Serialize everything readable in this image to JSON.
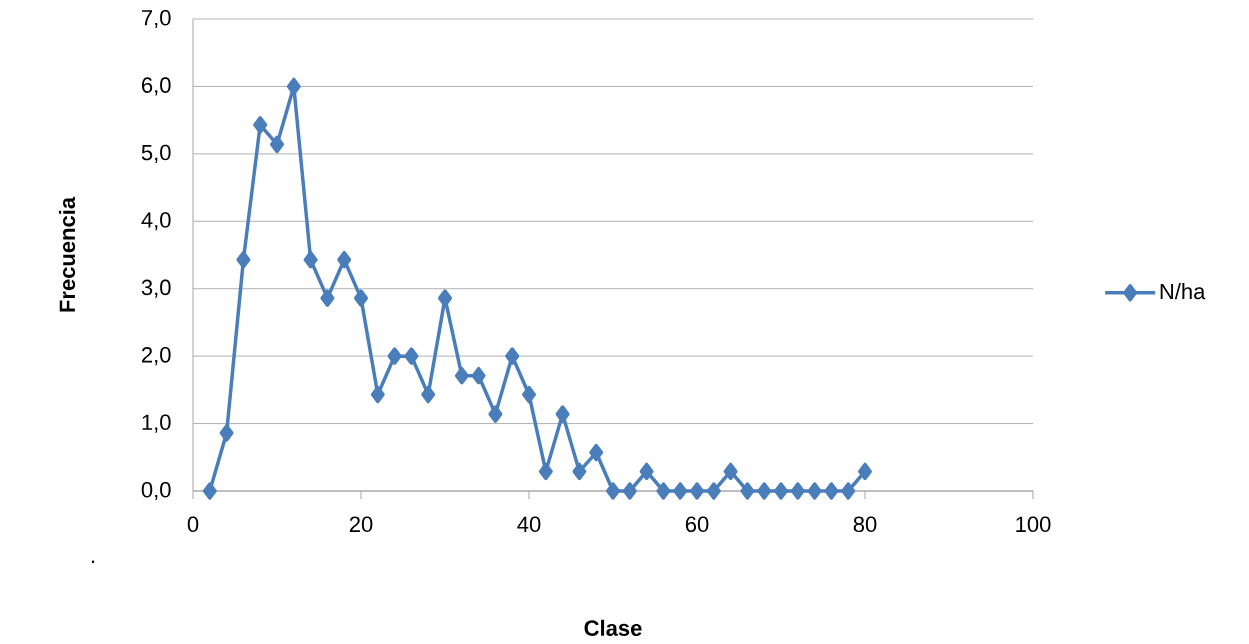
{
  "chart_data": {
    "type": "line",
    "xlabel": "Clase",
    "ylabel": "Frecuencia",
    "x": [
      2,
      4,
      6,
      8,
      10,
      12,
      14,
      16,
      18,
      20,
      22,
      24,
      26,
      28,
      30,
      32,
      34,
      36,
      38,
      40,
      42,
      44,
      46,
      48,
      50,
      52,
      54,
      56,
      58,
      60,
      62,
      64,
      66,
      68,
      70,
      72,
      74,
      76,
      78,
      80
    ],
    "series": [
      {
        "name": "N/ha",
        "color": "#4a7ebb",
        "values": [
          0,
          0.86,
          3.43,
          5.43,
          5.14,
          6.0,
          3.43,
          2.86,
          3.43,
          2.86,
          1.43,
          2.0,
          2.0,
          1.43,
          2.86,
          1.71,
          1.71,
          1.14,
          2.0,
          1.43,
          0.29,
          1.14,
          0.29,
          0.57,
          0,
          0,
          0.29,
          0,
          0,
          0,
          0,
          0.29,
          0,
          0,
          0,
          0,
          0,
          0,
          0,
          0.29
        ]
      }
    ],
    "xlim": [
      0,
      100
    ],
    "xticks": [
      0,
      20,
      40,
      60,
      80,
      100
    ],
    "ylim": [
      0,
      7
    ],
    "yticks": [
      {
        "value": 0,
        "label": "0,0"
      },
      {
        "value": 1,
        "label": "1,0"
      },
      {
        "value": 2,
        "label": "2,0"
      },
      {
        "value": 3,
        "label": "3,0"
      },
      {
        "value": 4,
        "label": "4,0"
      },
      {
        "value": 5,
        "label": "5,0"
      },
      {
        "value": 6,
        "label": "6,0"
      },
      {
        "value": 7,
        "label": "7,0"
      }
    ],
    "grid": "y",
    "legend": "right",
    "marker": "diamond",
    "line_style": "solid",
    "annotations": [
      "."
    ]
  }
}
